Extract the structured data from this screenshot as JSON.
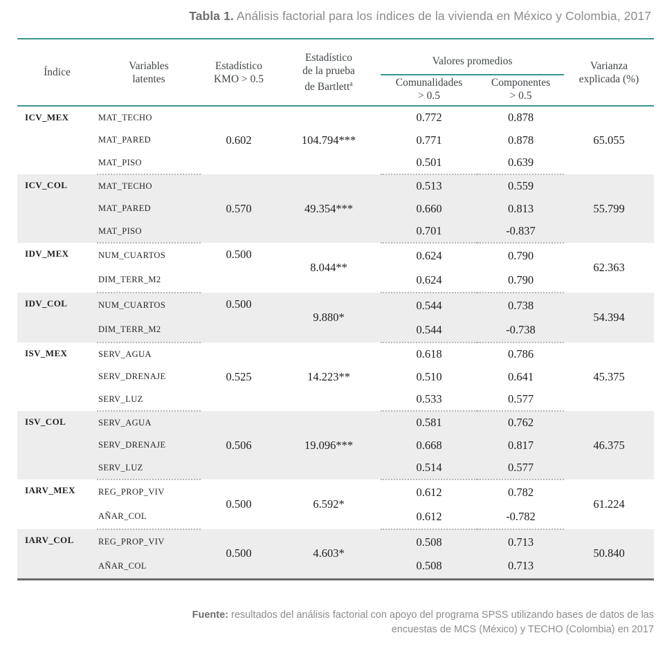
{
  "title": {
    "label": "Tabla 1.",
    "text": "Análisis factorial para los índices de la vivienda en México y Colombia, 2017"
  },
  "table": {
    "headers": {
      "indice": "Índice",
      "variables": "Variables\nlatentes",
      "kmo": "Estadístico\nKMO > 0.5",
      "bartlett": "Estadístico\nde la prueba\nde Bartlett",
      "bartlett_sup": "a",
      "valores_promedios": "Valores promedios",
      "comunalidades": "Comunalidades\n> 0.5",
      "componentes": "Componentes\n> 0.5",
      "varianza": "Varianza\nexplicada (%)"
    },
    "groups": [
      {
        "indice": "ICV_MEX",
        "kmo": "0.602",
        "bartlett": "104.794***",
        "varianza": "65.055",
        "shaded": false,
        "kmo_top": false,
        "rows": [
          {
            "variable": "MAT_TECHO",
            "comunalidad": "0.772",
            "componente": "0.878"
          },
          {
            "variable": "MAT_PARED",
            "comunalidad": "0.771",
            "componente": "0.878"
          },
          {
            "variable": "MAT_PISO",
            "comunalidad": "0.501",
            "componente": "0.639"
          }
        ]
      },
      {
        "indice": "ICV_COL",
        "kmo": "0.570",
        "bartlett": "49.354***",
        "varianza": "55.799",
        "shaded": true,
        "kmo_top": false,
        "rows": [
          {
            "variable": "MAT_TECHO",
            "comunalidad": "0.513",
            "componente": "0.559"
          },
          {
            "variable": "MAT_PARED",
            "comunalidad": "0.660",
            "componente": "0.813"
          },
          {
            "variable": "MAT_PISO",
            "comunalidad": "0.701",
            "componente": "-0.837"
          }
        ]
      },
      {
        "indice": "IDV_MEX",
        "kmo": "0.500",
        "bartlett": "8.044**",
        "varianza": "62.363",
        "shaded": false,
        "kmo_top": true,
        "rows": [
          {
            "variable": "NUM_CUARTOS",
            "comunalidad": "0.624",
            "componente": "0.790"
          },
          {
            "variable": "DIM_TERR_M2",
            "comunalidad": "0.624",
            "componente": "0.790"
          }
        ]
      },
      {
        "indice": "IDV_COL",
        "kmo": "0.500",
        "bartlett": "9.880*",
        "varianza": "54.394",
        "shaded": true,
        "kmo_top": true,
        "rows": [
          {
            "variable": "NUM_CUARTOS",
            "comunalidad": "0.544",
            "componente": "0.738"
          },
          {
            "variable": "DIM_TERR_M2",
            "comunalidad": "0.544",
            "componente": "-0.738"
          }
        ]
      },
      {
        "indice": "ISV_MEX",
        "kmo": "0.525",
        "bartlett": "14.223**",
        "varianza": "45.375",
        "shaded": false,
        "kmo_top": false,
        "rows": [
          {
            "variable": "SERV_AGUA",
            "comunalidad": "0.618",
            "componente": "0.786"
          },
          {
            "variable": "SERV_DRENAJE",
            "comunalidad": "0.510",
            "componente": "0.641"
          },
          {
            "variable": "SERV_LUZ",
            "comunalidad": "0.533",
            "componente": "0.577"
          }
        ]
      },
      {
        "indice": "ISV_COL",
        "kmo": "0.506",
        "bartlett": "19.096***",
        "varianza": "46.375",
        "shaded": true,
        "kmo_top": false,
        "rows": [
          {
            "variable": "SERV_AGUA",
            "comunalidad": "0.581",
            "componente": "0.762"
          },
          {
            "variable": "SERV_DRENAJE",
            "comunalidad": "0.668",
            "componente": "0.817"
          },
          {
            "variable": "SERV_LUZ",
            "comunalidad": "0.514",
            "componente": "0.577"
          }
        ]
      },
      {
        "indice": "IARV_MEX",
        "kmo": "0.500",
        "bartlett": "6.592*",
        "varianza": "61.224",
        "shaded": false,
        "kmo_top": false,
        "rows": [
          {
            "variable": "REG_PROP_VIV",
            "comunalidad": "0.612",
            "componente": "0.782"
          },
          {
            "variable": "AÑAR_COL",
            "comunalidad": "0.612",
            "componente": "-0.782"
          }
        ]
      },
      {
        "indice": "IARV_COL",
        "kmo": "0.500",
        "bartlett": "4.603*",
        "varianza": "50.840",
        "shaded": true,
        "kmo_top": false,
        "rows": [
          {
            "variable": "REG_PROP_VIV",
            "comunalidad": "0.508",
            "componente": "0.713"
          },
          {
            "variable": "AÑAR_COL",
            "comunalidad": "0.508",
            "componente": "0.713"
          }
        ]
      }
    ]
  },
  "footer": {
    "label": "Fuente:",
    "text": "resultados del análisis factorial con apoyo del programa SPSS utilizando bases de datos de las encuestas de MCS (México) y TECHO (Colombia) en 2017"
  },
  "colors": {
    "teal_rule": "#3a9391",
    "shaded_row": "#ededee",
    "title_gray": "#6d6e71",
    "body_text": "#1e1e1e"
  }
}
